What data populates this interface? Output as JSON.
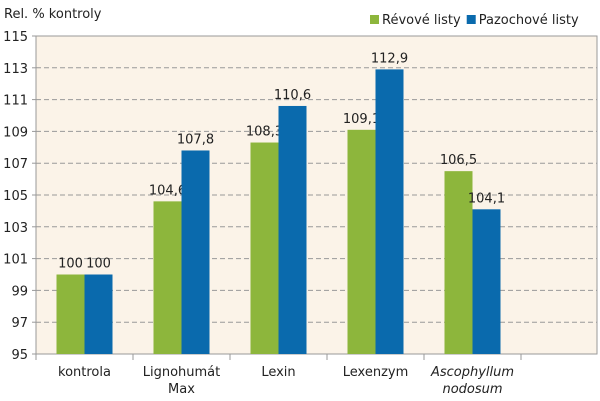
{
  "chart_data": {
    "type": "bar",
    "ylabel": "Rel. % kontroly",
    "ylim": [
      95,
      115
    ],
    "yticks": [
      95,
      97,
      99,
      101,
      103,
      105,
      107,
      109,
      111,
      113,
      115
    ],
    "grid": true,
    "legend_position": "top-right",
    "categories": [
      "kontrola",
      "Lignohumát Max",
      "Lexin",
      "Lexenzym",
      "Ascophyllum nodosum"
    ],
    "category_lines": [
      [
        "kontrola"
      ],
      [
        "Lignohumát",
        "Max"
      ],
      [
        "Lexin"
      ],
      [
        "Lexenzym"
      ],
      [
        "Ascophyllum",
        "nodosum"
      ]
    ],
    "category_italic": [
      false,
      false,
      false,
      false,
      true
    ],
    "series": [
      {
        "name": "Révové listy",
        "color": "#8db63c",
        "values": [
          100,
          104.6,
          108.3,
          109.1,
          106.5
        ],
        "labels": [
          "100",
          "104,6",
          "108,3",
          "109,1",
          "106,5"
        ]
      },
      {
        "name": "Pazochové listy",
        "color": "#0a6aad",
        "values": [
          100,
          107.8,
          110.6,
          112.9,
          104.1
        ],
        "labels": [
          "100",
          "107,8",
          "110,6",
          "112,9",
          "104,1"
        ]
      }
    ],
    "background": "#fbf3e8"
  }
}
